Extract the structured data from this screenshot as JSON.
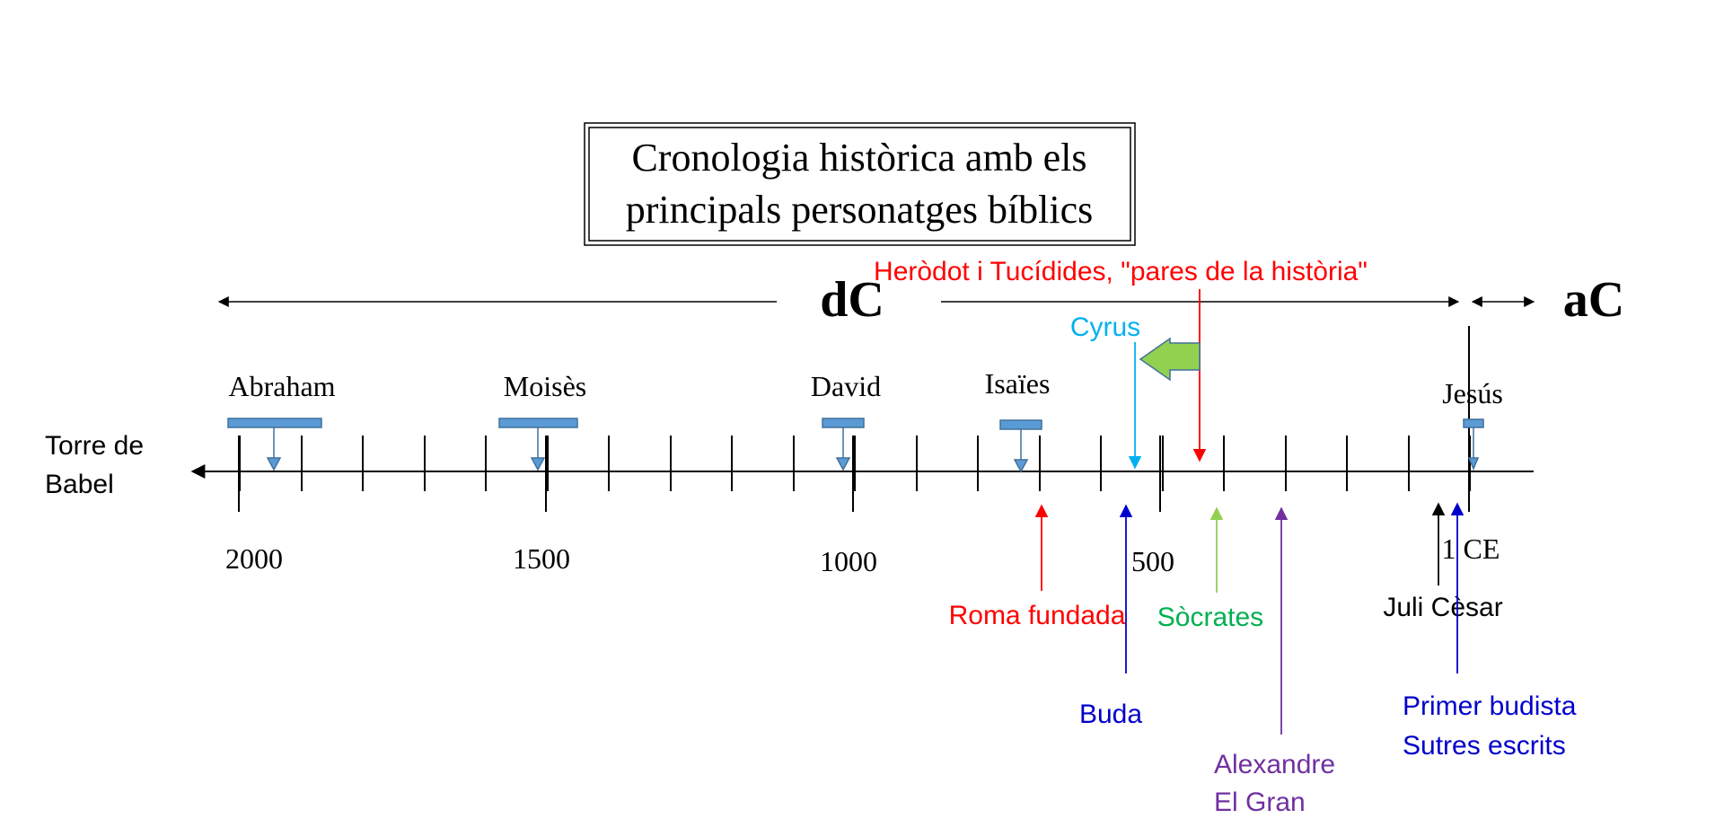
{
  "title": {
    "line1": "Cronologia històrica amb els",
    "line2": "principals personatges bíblics"
  },
  "era_left": "dC",
  "era_right": "aC",
  "axis_start": {
    "line1": "Torre de",
    "line2": "Babel"
  },
  "tick_labels": [
    "2000",
    "1500",
    "1000",
    "500",
    "1 CE"
  ],
  "biblical_figures": [
    "Abraham",
    "Moisès",
    "David",
    "Isaïes",
    "Jesús"
  ],
  "events_above": [
    {
      "label": "Heròdot i Tucídides, \"pares de la història\"",
      "color": "#ff0000"
    },
    {
      "label": "Cyrus",
      "color": "#00b0f0"
    }
  ],
  "events_below": [
    {
      "label": "Roma fundada",
      "color": "#ff0000"
    },
    {
      "label": "Buda",
      "color": "#0000cc"
    },
    {
      "label": "Sòcrates",
      "color": "#00b050"
    },
    {
      "label": "Alexandre",
      "label2": "El Gran",
      "color": "#7030a0"
    },
    {
      "label": "Juli Cèsar",
      "color": "#000000"
    },
    {
      "label": "Primer budista",
      "label2": "Sutres escrits",
      "color": "#0000cc"
    }
  ],
  "colors": {
    "bar_fill": "#5b9bd5",
    "bar_stroke": "#41719c",
    "green_arrow": "#92d050",
    "socrates_arrow": "#92d050"
  }
}
